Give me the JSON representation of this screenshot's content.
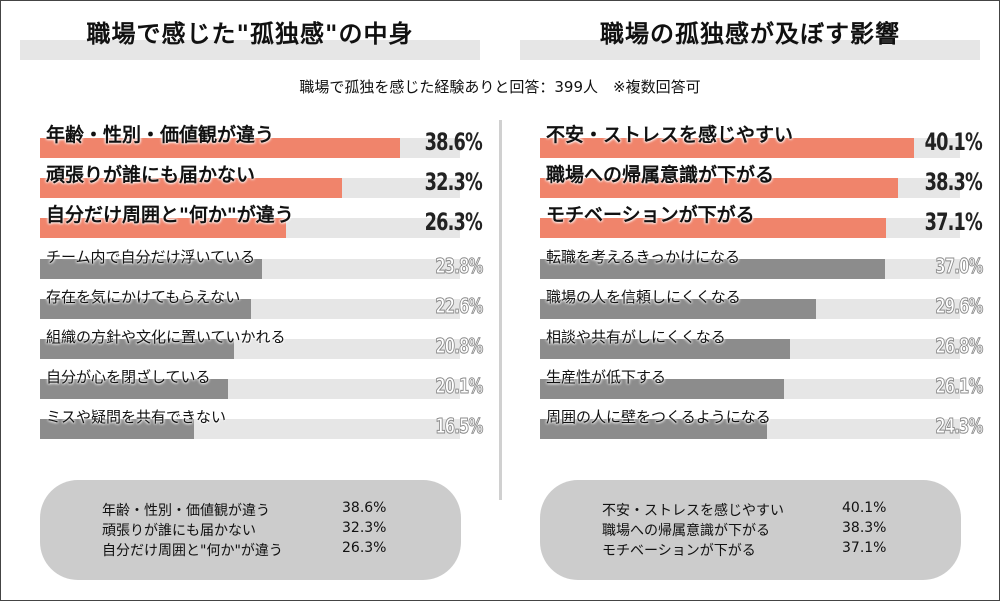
{
  "subtitle": "職場で孤独を感じた経験ありと回答：399人　※複数回答可",
  "colors": {
    "accent": "#f0846b",
    "gray_bar": "#8c8c8c",
    "track": "#e6e6e6",
    "summary_bg": "#cccccc"
  },
  "chart_data": [
    {
      "type": "bar",
      "title": "職場で感じた\"孤独感\"の中身",
      "orientation": "horizontal",
      "xlim": [
        0,
        45
      ],
      "categories": [
        "年齢・性別・価値観が違う",
        "頑張りが誰にも届かない",
        "自分だけ周囲と\"何か\"が違う",
        "チーム内で自分だけ浮いている",
        "存在を気にかけてもらえない",
        "組織の方針や文化に置いていかれる",
        "自分が心を閉ざしている",
        "ミスや疑問を共有できない"
      ],
      "values": [
        38.6,
        32.3,
        26.3,
        23.8,
        22.6,
        20.8,
        20.1,
        16.5
      ],
      "value_labels": [
        "38.6%",
        "32.3%",
        "26.3%",
        "23.8%",
        "22.6%",
        "20.8%",
        "20.1%",
        "16.5%"
      ],
      "highlight_top": 3
    },
    {
      "type": "bar",
      "title": "職場の孤独感が及ぼす影響",
      "orientation": "horizontal",
      "xlim": [
        0,
        45
      ],
      "categories": [
        "不安・ストレスを感じやすい",
        "職場への帰属意識が下がる",
        "モチベーションが下がる",
        "転職を考えるきっかけになる",
        "職場の人を信頼しにくくなる",
        "相談や共有がしにくくなる",
        "生産性が低下する",
        "周囲の人に壁をつくるようになる"
      ],
      "values": [
        40.1,
        38.3,
        37.1,
        37.0,
        29.6,
        26.8,
        26.1,
        24.3
      ],
      "value_labels": [
        "40.1%",
        "38.3%",
        "37.1%",
        "37.0%",
        "29.6%",
        "26.8%",
        "26.1%",
        "24.3%"
      ],
      "highlight_top": 3
    }
  ],
  "summaries": [
    {
      "rows": [
        {
          "label": "年齢・性別・価値観が違う",
          "value": "38.6%"
        },
        {
          "label": "頑張りが誰にも届かない",
          "value": "32.3%"
        },
        {
          "label": "自分だけ周囲と\"何か\"が違う",
          "value": "26.3%"
        }
      ]
    },
    {
      "rows": [
        {
          "label": "不安・ストレスを感じやすい",
          "value": "40.1%"
        },
        {
          "label": "職場への帰属意識が下がる",
          "value": "38.3%"
        },
        {
          "label": "モチベーションが下がる",
          "value": "37.1%"
        }
      ]
    }
  ]
}
